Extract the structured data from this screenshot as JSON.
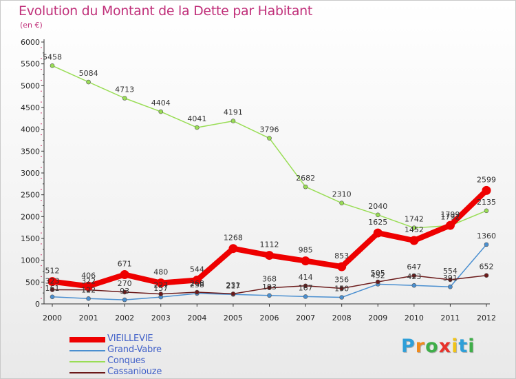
{
  "title": "Evolution du Montant de la Dette par Habitant",
  "subtitle": "(en €)",
  "logo": {
    "text": "Proxiti",
    "letters": [
      "P",
      "r",
      "o",
      "x",
      "i",
      "t",
      "i"
    ],
    "colors": [
      "#2f9fd8",
      "#f08a1c",
      "#3fae49",
      "#e8322b",
      "#f0c419",
      "#2f9fd8",
      "#3fae49"
    ]
  },
  "chart_data": {
    "type": "line",
    "title": "Evolution du Montant de la Dette par Habitant",
    "ylabel": "(en €)",
    "xlabel": "",
    "x": [
      "2000",
      "2001",
      "2002",
      "2003",
      "2004",
      "2005",
      "2006",
      "2007",
      "2008",
      "2009",
      "2010",
      "2011",
      "2012"
    ],
    "ylim": [
      0,
      6000
    ],
    "yticks": [
      "0",
      "500",
      "1000",
      "1500",
      "2000",
      "2500",
      "3000",
      "3500",
      "4000",
      "4500",
      "5000",
      "5500",
      "6000"
    ],
    "grid": false,
    "legend_position": "bottom-left",
    "series": [
      {
        "name": "VIEILLEVIE",
        "color": "#ee0000",
        "values": [
          512,
          406,
          671,
          480,
          544,
          1268,
          1112,
          985,
          853,
          1625,
          1452,
          1799,
          2599
        ],
        "labels": [
          "512",
          "406",
          "671",
          "480",
          "544",
          "1268",
          "1112",
          "985",
          "853",
          "1625",
          "1452",
          "1799",
          "2599"
        ]
      },
      {
        "name": "Grand-Vabre",
        "color": "#4a8fd0",
        "values": [
          161,
          122,
          93,
          157,
          238,
          217,
          193,
          167,
          150,
          452,
          423,
          391,
          1360
        ],
        "labels": [
          "161",
          "122",
          "93",
          "157",
          "238",
          "217",
          "193",
          "167",
          "150",
          "452",
          "423",
          "391",
          "1360"
        ]
      },
      {
        "name": "Conques",
        "color": "#99dd55",
        "values": [
          5458,
          5084,
          4713,
          4404,
          4041,
          4191,
          3796,
          2682,
          2310,
          2040,
          1742,
          1792,
          2135
        ],
        "labels": [
          "5458",
          "5084",
          "4713",
          "4404",
          "4041",
          "4191",
          "3796",
          "2682",
          "2310",
          "2040",
          "1742",
          "1792",
          "2135"
        ]
      },
      {
        "name": "Cassaniouze",
        "color": "#6b1a1a",
        "values": [
          323,
          322,
          270,
          227,
          268,
          231,
          368,
          414,
          356,
          505,
          647,
          554,
          652
        ],
        "labels": [
          "323",
          "322",
          "270",
          "227",
          "268",
          "231",
          "368",
          "414",
          "356",
          "505",
          "647",
          "554",
          "652"
        ]
      }
    ]
  }
}
